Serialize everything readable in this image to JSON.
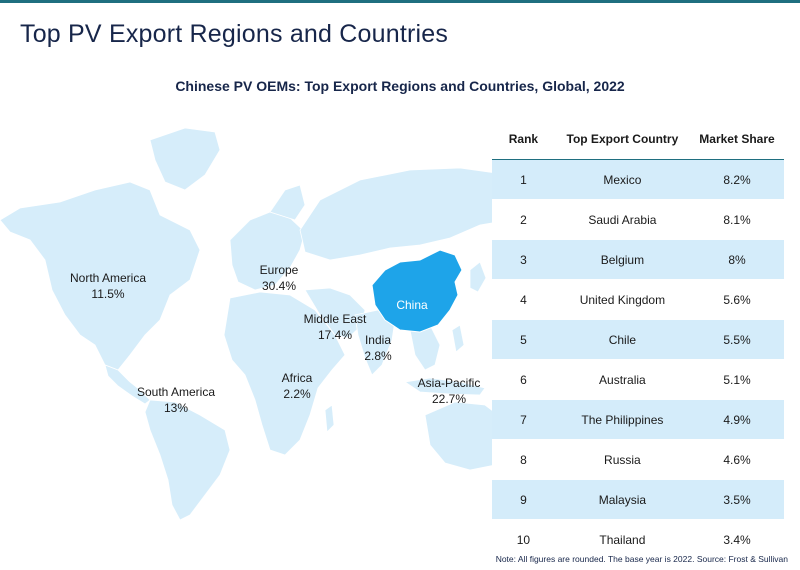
{
  "header": {
    "title": "Top PV Export Regions and Countries",
    "subtitle": "Chinese PV OEMs: Top Export Regions and Countries, Global, 2022"
  },
  "colors": {
    "map_land": "#d6edfa",
    "china_highlight": "#1ea4e9",
    "accent_line": "#1f6f80",
    "row_band": "#d4ecfa"
  },
  "chart_data": [
    {
      "type": "map",
      "highlight": "China",
      "regions": [
        {
          "name": "North America",
          "value": "11.5%"
        },
        {
          "name": "Europe",
          "value": "30.4%"
        },
        {
          "name": "Middle East",
          "value": "17.4%"
        },
        {
          "name": "India",
          "value": "2.8%"
        },
        {
          "name": "South America",
          "value": "13%"
        },
        {
          "name": "Africa",
          "value": "2.2%"
        },
        {
          "name": "Asia-Pacific",
          "value": "22.7%"
        }
      ],
      "china_label": "China"
    },
    {
      "type": "table",
      "columns": [
        "Rank",
        "Top Export Country",
        "Market Share"
      ],
      "rows": [
        [
          "1",
          "Mexico",
          "8.2%"
        ],
        [
          "2",
          "Saudi Arabia",
          "8.1%"
        ],
        [
          "3",
          "Belgium",
          "8%"
        ],
        [
          "4",
          "United Kingdom",
          "5.6%"
        ],
        [
          "5",
          "Chile",
          "5.5%"
        ],
        [
          "6",
          "Australia",
          "5.1%"
        ],
        [
          "7",
          "The Philippines",
          "4.9%"
        ],
        [
          "8",
          "Russia",
          "4.6%"
        ],
        [
          "9",
          "Malaysia",
          "3.5%"
        ],
        [
          "10",
          "Thailand",
          "3.4%"
        ]
      ]
    }
  ],
  "footer": {
    "note": "Note: All figures are rounded. The base year is 2022. Source: Frost & Sullivan"
  }
}
